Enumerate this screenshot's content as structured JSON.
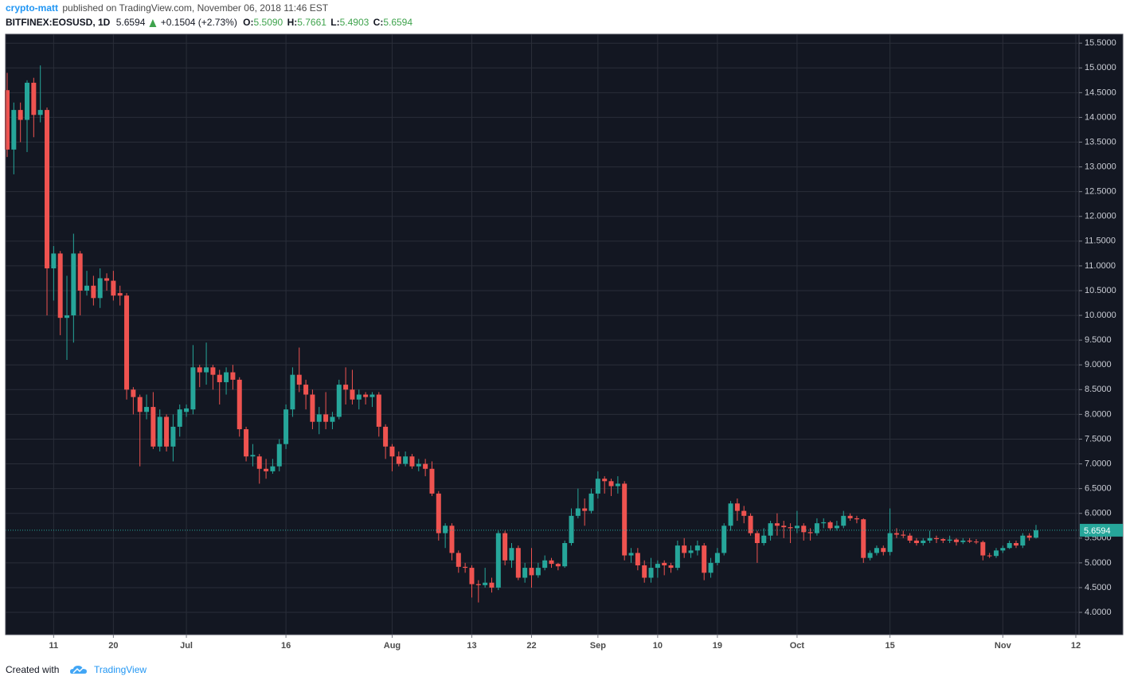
{
  "header": {
    "author": "crypto-matt",
    "published": "published on TradingView.com, November 06, 2018 11:46 EST",
    "symbol": "BITFINEX:EOSUSD, 1D",
    "last": "5.6594",
    "change": "+0.1504 (+2.73%)",
    "open_label": "O:",
    "open": "5.5090",
    "high_label": "H:",
    "high": "5.7661",
    "low_label": "L:",
    "low": "5.4903",
    "close_label": "C:",
    "close": "5.6594"
  },
  "footer": {
    "created": "Created with",
    "brand": "TradingView"
  },
  "chart_data": {
    "type": "candlestick",
    "up_color": "#26a69a",
    "down_color": "#ef5350",
    "background": "#131722",
    "grid": true,
    "grid_color": "#2a2e39",
    "last_price": 5.6594,
    "last_price_color": "#26a69a",
    "xlim": [
      "06-04",
      "11-12"
    ],
    "ylim": [
      3.55,
      15.68
    ],
    "xticks": [
      {
        "value": "06-11",
        "label": "11"
      },
      {
        "value": "06-20",
        "label": "20"
      },
      {
        "value": "07-01",
        "label": "Jul"
      },
      {
        "value": "07-16",
        "label": "16"
      },
      {
        "value": "08-01",
        "label": "Aug"
      },
      {
        "value": "08-13",
        "label": "13"
      },
      {
        "value": "08-22",
        "label": "22"
      },
      {
        "value": "09-01",
        "label": "Sep"
      },
      {
        "value": "09-10",
        "label": "10"
      },
      {
        "value": "09-19",
        "label": "19"
      },
      {
        "value": "10-01",
        "label": "Oct"
      },
      {
        "value": "10-15",
        "label": "15"
      },
      {
        "value": "11-01",
        "label": "Nov"
      },
      {
        "value": "11-12",
        "label": "12"
      }
    ],
    "yticks": [
      {
        "value": 4,
        "label": "4.0000"
      },
      {
        "value": 4.5,
        "label": "4.5000"
      },
      {
        "value": 5,
        "label": "5.0000"
      },
      {
        "value": 5.5,
        "label": "5.5000"
      },
      {
        "value": 6,
        "label": "6.0000"
      },
      {
        "value": 6.5,
        "label": "6.5000"
      },
      {
        "value": 7,
        "label": "7.0000"
      },
      {
        "value": 7.5,
        "label": "7.5000"
      },
      {
        "value": 8,
        "label": "8.0000"
      },
      {
        "value": 8.5,
        "label": "8.5000"
      },
      {
        "value": 9,
        "label": "9.0000"
      },
      {
        "value": 9.5,
        "label": "9.5000"
      },
      {
        "value": 10,
        "label": "10.0000"
      },
      {
        "value": 10.5,
        "label": "10.5000"
      },
      {
        "value": 11,
        "label": "11.0000"
      },
      {
        "value": 11.5,
        "label": "11.5000"
      },
      {
        "value": 12,
        "label": "12.0000"
      },
      {
        "value": 12.5,
        "label": "12.5000"
      },
      {
        "value": 13,
        "label": "13.0000"
      },
      {
        "value": 13.5,
        "label": "13.5000"
      },
      {
        "value": 14,
        "label": "14.0000"
      },
      {
        "value": 14.5,
        "label": "14.5000"
      },
      {
        "value": 15,
        "label": "15.0000"
      },
      {
        "value": 15.5,
        "label": "15.5000"
      }
    ],
    "x": [
      "06-04",
      "06-05",
      "06-06",
      "06-07",
      "06-08",
      "06-09",
      "06-10",
      "06-11",
      "06-12",
      "06-13",
      "06-14",
      "06-15",
      "06-16",
      "06-17",
      "06-18",
      "06-19",
      "06-20",
      "06-21",
      "06-22",
      "06-23",
      "06-24",
      "06-25",
      "06-26",
      "06-27",
      "06-28",
      "06-29",
      "06-30",
      "07-01",
      "07-02",
      "07-03",
      "07-04",
      "07-05",
      "07-06",
      "07-07",
      "07-08",
      "07-09",
      "07-10",
      "07-11",
      "07-12",
      "07-13",
      "07-14",
      "07-15",
      "07-16",
      "07-17",
      "07-18",
      "07-19",
      "07-20",
      "07-21",
      "07-22",
      "07-23",
      "07-24",
      "07-25",
      "07-26",
      "07-27",
      "07-28",
      "07-29",
      "07-30",
      "07-31",
      "08-01",
      "08-02",
      "08-03",
      "08-04",
      "08-05",
      "08-06",
      "08-07",
      "08-08",
      "08-09",
      "08-10",
      "08-11",
      "08-12",
      "08-13",
      "08-14",
      "08-15",
      "08-16",
      "08-17",
      "08-18",
      "08-19",
      "08-20",
      "08-21",
      "08-22",
      "08-23",
      "08-24",
      "08-25",
      "08-26",
      "08-27",
      "08-28",
      "08-29",
      "08-30",
      "08-31",
      "09-01",
      "09-02",
      "09-03",
      "09-04",
      "09-05",
      "09-06",
      "09-07",
      "09-08",
      "09-09",
      "09-10",
      "09-11",
      "09-12",
      "09-13",
      "09-14",
      "09-15",
      "09-16",
      "09-17",
      "09-18",
      "09-19",
      "09-20",
      "09-21",
      "09-22",
      "09-23",
      "09-24",
      "09-25",
      "09-26",
      "09-27",
      "09-28",
      "09-29",
      "09-30",
      "10-01",
      "10-02",
      "10-03",
      "10-04",
      "10-05",
      "10-06",
      "10-07",
      "10-08",
      "10-09",
      "10-10",
      "10-11",
      "10-12",
      "10-13",
      "10-14",
      "10-15",
      "10-16",
      "10-17",
      "10-18",
      "10-19",
      "10-20",
      "10-21",
      "10-22",
      "10-23",
      "10-24",
      "10-25",
      "10-26",
      "10-27",
      "10-28",
      "10-29",
      "10-30",
      "10-31",
      "11-01",
      "11-02",
      "11-03",
      "11-04",
      "11-05",
      "11-06"
    ],
    "open": [
      14.55,
      13.35,
      14.15,
      13.95,
      14.7,
      14.05,
      14.15,
      10.95,
      11.25,
      9.95,
      10.0,
      11.25,
      10.5,
      10.6,
      10.35,
      10.75,
      10.7,
      10.45,
      10.4,
      8.5,
      8.35,
      8.05,
      8.15,
      7.35,
      7.95,
      7.35,
      7.75,
      8.05,
      8.1,
      8.95,
      8.85,
      8.95,
      8.8,
      8.65,
      8.85,
      8.7,
      7.7,
      7.15,
      7.15,
      6.9,
      6.85,
      6.95,
      7.4,
      8.1,
      8.8,
      8.6,
      8.4,
      7.85,
      8.0,
      7.85,
      7.95,
      8.6,
      8.5,
      8.3,
      8.4,
      8.35,
      8.4,
      7.75,
      7.35,
      7.15,
      7.0,
      7.15,
      6.95,
      7.0,
      6.9,
      6.4,
      5.6,
      5.75,
      5.2,
      4.92,
      4.9,
      4.57,
      4.55,
      4.6,
      4.5,
      5.6,
      5.05,
      5.3,
      4.7,
      4.9,
      4.75,
      4.9,
      5.05,
      4.98,
      4.93,
      5.4,
      5.95,
      6.1,
      6.05,
      6.4,
      6.7,
      6.65,
      6.55,
      6.6,
      5.15,
      5.2,
      4.95,
      4.7,
      4.9,
      5.0,
      4.95,
      4.9,
      5.35,
      5.2,
      5.25,
      5.35,
      4.8,
      5.0,
      5.2,
      5.75,
      6.2,
      6.05,
      5.95,
      5.6,
      5.4,
      5.55,
      5.8,
      5.75,
      5.72,
      5.7,
      5.75,
      5.62,
      5.6,
      5.8,
      5.82,
      5.7,
      5.75,
      5.95,
      5.9,
      5.88,
      5.1,
      5.2,
      5.3,
      5.22,
      5.6,
      5.57,
      5.55,
      5.45,
      5.4,
      5.45,
      5.5,
      5.48,
      5.45,
      5.47,
      5.42,
      5.45,
      5.43,
      5.42,
      5.15,
      5.14,
      5.25,
      5.3,
      5.4,
      5.35,
      5.55,
      5.509
    ],
    "high": [
      14.9,
      14.3,
      14.3,
      14.75,
      14.8,
      15.05,
      14.2,
      11.4,
      11.3,
      10.8,
      11.65,
      11.3,
      10.9,
      10.8,
      10.95,
      10.85,
      10.9,
      10.6,
      10.45,
      8.55,
      8.4,
      8.4,
      8.45,
      8.1,
      8.0,
      8.0,
      8.2,
      8.2,
      9.4,
      9.0,
      9.45,
      9.0,
      8.9,
      8.95,
      9.0,
      8.75,
      7.75,
      7.4,
      7.2,
      7.1,
      7.1,
      7.5,
      8.2,
      8.95,
      9.35,
      8.7,
      8.5,
      8.15,
      8.45,
      8.05,
      8.7,
      8.95,
      8.9,
      8.5,
      8.45,
      8.45,
      8.45,
      7.8,
      7.4,
      7.25,
      7.25,
      7.2,
      7.1,
      7.1,
      7.05,
      6.45,
      5.8,
      5.8,
      5.25,
      5.0,
      4.95,
      4.65,
      4.9,
      4.7,
      5.65,
      5.65,
      5.4,
      5.35,
      5.0,
      5.3,
      5.0,
      5.15,
      5.1,
      5.0,
      5.45,
      6.1,
      6.5,
      6.3,
      6.5,
      6.85,
      6.75,
      6.7,
      6.75,
      6.65,
      5.3,
      5.3,
      5.05,
      5.1,
      5.05,
      5.05,
      5.0,
      5.45,
      5.5,
      5.35,
      5.45,
      5.4,
      5.1,
      5.3,
      5.8,
      6.25,
      6.3,
      6.15,
      6.0,
      5.65,
      5.7,
      5.85,
      6.0,
      5.85,
      5.8,
      6.05,
      5.8,
      5.7,
      5.9,
      5.9,
      5.85,
      5.85,
      6.05,
      6.0,
      5.95,
      5.9,
      5.25,
      5.35,
      5.35,
      6.1,
      5.7,
      5.65,
      5.6,
      5.5,
      5.5,
      5.65,
      5.55,
      5.5,
      5.55,
      5.5,
      5.5,
      5.5,
      5.48,
      5.45,
      5.2,
      5.3,
      5.35,
      5.45,
      5.45,
      5.6,
      5.6,
      5.7661
    ],
    "low": [
      13.2,
      12.85,
      13.5,
      13.3,
      13.6,
      13.9,
      10.0,
      10.3,
      9.6,
      9.1,
      9.45,
      10.0,
      10.4,
      10.2,
      10.15,
      10.5,
      10.3,
      10.2,
      8.3,
      8.0,
      6.95,
      7.9,
      7.3,
      7.25,
      7.25,
      7.05,
      7.55,
      7.95,
      8.0,
      8.55,
      8.6,
      8.5,
      8.2,
      8.4,
      8.5,
      7.55,
      7.05,
      6.95,
      6.6,
      6.7,
      6.8,
      6.85,
      7.3,
      7.95,
      8.45,
      8.1,
      7.7,
      7.6,
      7.7,
      7.7,
      7.9,
      8.2,
      8.2,
      8.1,
      8.2,
      8.15,
      7.55,
      7.1,
      6.85,
      6.95,
      6.95,
      6.9,
      6.85,
      6.75,
      6.35,
      5.45,
      5.3,
      5.05,
      4.8,
      4.8,
      4.3,
      4.2,
      4.5,
      4.4,
      4.45,
      4.95,
      4.9,
      4.65,
      4.6,
      4.5,
      4.7,
      4.85,
      4.9,
      4.85,
      4.9,
      5.35,
      5.9,
      5.75,
      6.0,
      6.3,
      6.4,
      6.35,
      6.4,
      5.05,
      5.0,
      4.85,
      4.6,
      4.6,
      4.7,
      4.75,
      4.8,
      4.85,
      5.1,
      5.1,
      5.15,
      4.65,
      4.7,
      4.95,
      5.15,
      5.65,
      5.85,
      5.8,
      5.55,
      5.0,
      5.35,
      5.45,
      5.55,
      5.5,
      5.4,
      5.6,
      5.45,
      5.45,
      5.55,
      5.7,
      5.65,
      5.65,
      5.7,
      5.85,
      5.8,
      5.0,
      5.05,
      5.15,
      5.15,
      5.15,
      5.5,
      5.5,
      5.4,
      5.35,
      5.35,
      5.4,
      5.4,
      5.4,
      5.4,
      5.35,
      5.38,
      5.4,
      5.38,
      5.05,
      5.1,
      5.1,
      5.2,
      5.28,
      5.3,
      5.3,
      5.45,
      5.4903
    ],
    "close": [
      13.35,
      14.15,
      13.95,
      14.7,
      14.05,
      14.15,
      10.95,
      11.25,
      9.95,
      10.0,
      11.25,
      10.5,
      10.6,
      10.35,
      10.75,
      10.7,
      10.4,
      10.4,
      8.5,
      8.35,
      8.05,
      8.15,
      7.35,
      7.95,
      7.35,
      7.75,
      8.1,
      8.12,
      8.95,
      8.85,
      8.95,
      8.8,
      8.65,
      8.85,
      8.7,
      7.7,
      7.15,
      7.18,
      6.9,
      6.85,
      6.95,
      7.4,
      8.1,
      8.8,
      8.6,
      8.4,
      7.85,
      8.0,
      7.85,
      7.95,
      8.6,
      8.5,
      8.3,
      8.4,
      8.35,
      8.4,
      7.75,
      7.35,
      7.15,
      7.0,
      7.15,
      6.95,
      7.0,
      6.9,
      6.4,
      5.6,
      5.75,
      5.2,
      4.92,
      4.9,
      4.57,
      4.55,
      4.6,
      4.5,
      5.6,
      5.05,
      5.3,
      4.7,
      4.9,
      4.75,
      4.9,
      5.05,
      4.98,
      4.93,
      5.4,
      5.95,
      6.1,
      6.05,
      6.4,
      6.7,
      6.65,
      6.55,
      6.6,
      5.15,
      5.2,
      4.95,
      4.7,
      4.9,
      4.98,
      4.95,
      4.9,
      5.35,
      5.2,
      5.25,
      5.35,
      4.8,
      5.0,
      5.2,
      5.75,
      6.2,
      6.05,
      5.95,
      5.6,
      5.4,
      5.55,
      5.8,
      5.75,
      5.72,
      5.7,
      5.75,
      5.62,
      5.6,
      5.8,
      5.82,
      5.7,
      5.75,
      5.95,
      5.9,
      5.88,
      5.1,
      5.2,
      5.3,
      5.22,
      5.6,
      5.57,
      5.55,
      5.45,
      5.4,
      5.45,
      5.5,
      5.48,
      5.45,
      5.47,
      5.42,
      5.45,
      5.43,
      5.42,
      5.15,
      5.14,
      5.25,
      5.3,
      5.4,
      5.35,
      5.55,
      5.509,
      5.6594
    ]
  }
}
